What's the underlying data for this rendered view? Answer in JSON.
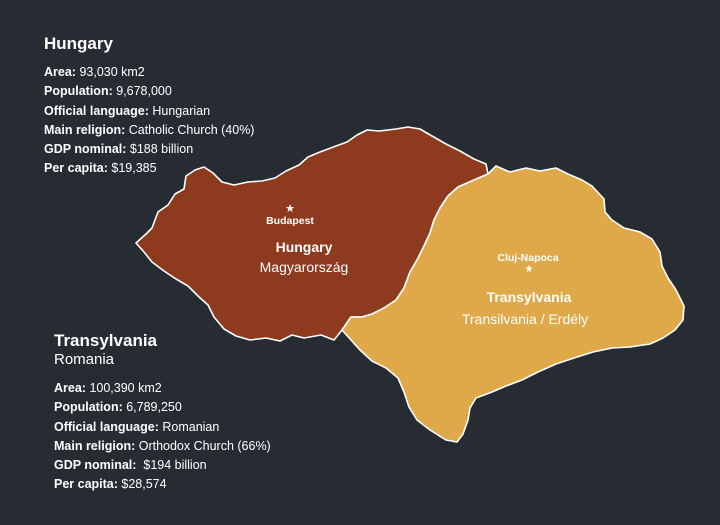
{
  "colors": {
    "background": "#272c33",
    "hungary_fill": "#8e3a1e",
    "transylvania_fill": "#dfa849",
    "border": "#ffffff"
  },
  "hungary": {
    "title": "Hungary",
    "facts": [
      {
        "label": "Area:",
        "value": " 93,030 km2"
      },
      {
        "label": "Population:",
        "value": " 9,678,000"
      },
      {
        "label": "Official language:",
        "value": " Hungarian"
      },
      {
        "label": "Main religion:",
        "value": " Catholic Church (40%)"
      },
      {
        "label": "GDP nominal:",
        "value": " $188 billion"
      },
      {
        "label": "Per capita:",
        "value": " $19,385"
      }
    ]
  },
  "transylvania": {
    "title": "Transylvania",
    "country": "Romania",
    "facts": [
      {
        "label": "Area:",
        "value": " 100,390 km2"
      },
      {
        "label": "Population:",
        "value": " 6,789,250"
      },
      {
        "label": "Official language:",
        "value": " Romanian"
      },
      {
        "label": "Main religion:",
        "value": " Orthodox Church (66%)"
      },
      {
        "label": "GDP nominal:",
        "value": "  $194 billion"
      },
      {
        "label": "Per capita:",
        "value": " $28,574"
      }
    ]
  },
  "map": {
    "hungary_label": "Hungary",
    "hungary_native": "Magyarország",
    "hungary_capital": "Budapest",
    "transylvania_label": "Transylvania",
    "transylvania_native": "Transilvania / Erdély",
    "transylvania_city": "Cluj-Napoca",
    "city_marker_icon": "star-icon"
  }
}
